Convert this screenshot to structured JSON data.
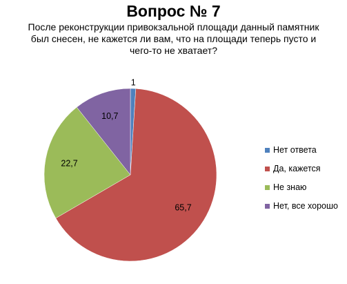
{
  "chart_data": {
    "type": "pie",
    "title": "Вопрос № 7",
    "subtitle": "После реконструкции привокзальной площади данный памятник был снесен, не кажется ли вам, что на площади теперь пусто и чего-то не хватает?",
    "legend_position": "right",
    "slices": [
      {
        "name": "Нет ответа",
        "value": 1,
        "label": "1",
        "color": "#4F81BD"
      },
      {
        "name": "Да, кажется",
        "value": 65.7,
        "label": "65,7",
        "color": "#C0504D"
      },
      {
        "name": "Не знаю",
        "value": 22.7,
        "label": "22,7",
        "color": "#9BBB59"
      },
      {
        "name": "Нет, все хорошо",
        "value": 10.7,
        "label": "10,7",
        "color": "#8064A2"
      }
    ]
  }
}
